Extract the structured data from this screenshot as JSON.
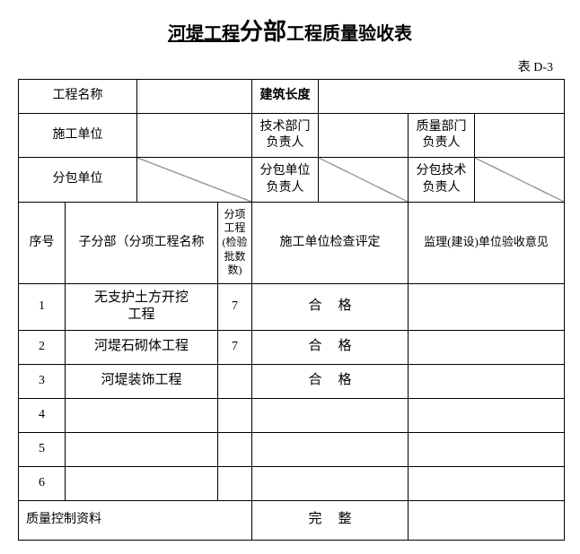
{
  "title": {
    "part1": "河堤工程",
    "part2": "分部",
    "part3": "工程质量验收表"
  },
  "table_label": "表 D-3",
  "header": {
    "project_name_label": "工程名称",
    "project_name_value": "",
    "building_length_label": "建筑长度",
    "building_length_value": "",
    "construction_unit_label": "施工单位",
    "construction_unit_value": "",
    "tech_dept_label": "技术部门\n负责人",
    "tech_dept_value": "",
    "quality_dept_label": "质量部门\n负责人",
    "quality_dept_value": "",
    "subcontract_unit_label": "分包单位",
    "subcontract_unit_value": "",
    "subcontract_unit_mgr_label": "分包单位\n负责人",
    "subcontract_unit_mgr_value": "",
    "subcontract_tech_label": "分包技术\n负责人",
    "subcontract_tech_value": ""
  },
  "columns": {
    "seq": "序号",
    "name": "子分部（分项工程名称",
    "batch": "分项工程\n(检验批数数)",
    "check": "施工单位检查评定",
    "opinion": "监理(建设)单位验收意见"
  },
  "rows": [
    {
      "seq": "1",
      "name": "无支护土方开挖\n工程",
      "batch": "7",
      "check": "合格",
      "opinion": ""
    },
    {
      "seq": "2",
      "name": "河堤石砌体工程",
      "batch": "7",
      "check": "合格",
      "opinion": ""
    },
    {
      "seq": "3",
      "name": "河堤装饰工程",
      "batch": "",
      "check": "合格",
      "opinion": ""
    },
    {
      "seq": "4",
      "name": "",
      "batch": "",
      "check": "",
      "opinion": ""
    },
    {
      "seq": "5",
      "name": "",
      "batch": "",
      "check": "",
      "opinion": ""
    },
    {
      "seq": "6",
      "name": "",
      "batch": "",
      "check": "",
      "opinion": ""
    }
  ],
  "footer": {
    "quality_control_label": "质量控制资料",
    "quality_control_status": "完整",
    "quality_control_opinion": ""
  },
  "colors": {
    "border": "#000000",
    "text": "#000000",
    "background": "#ffffff"
  }
}
